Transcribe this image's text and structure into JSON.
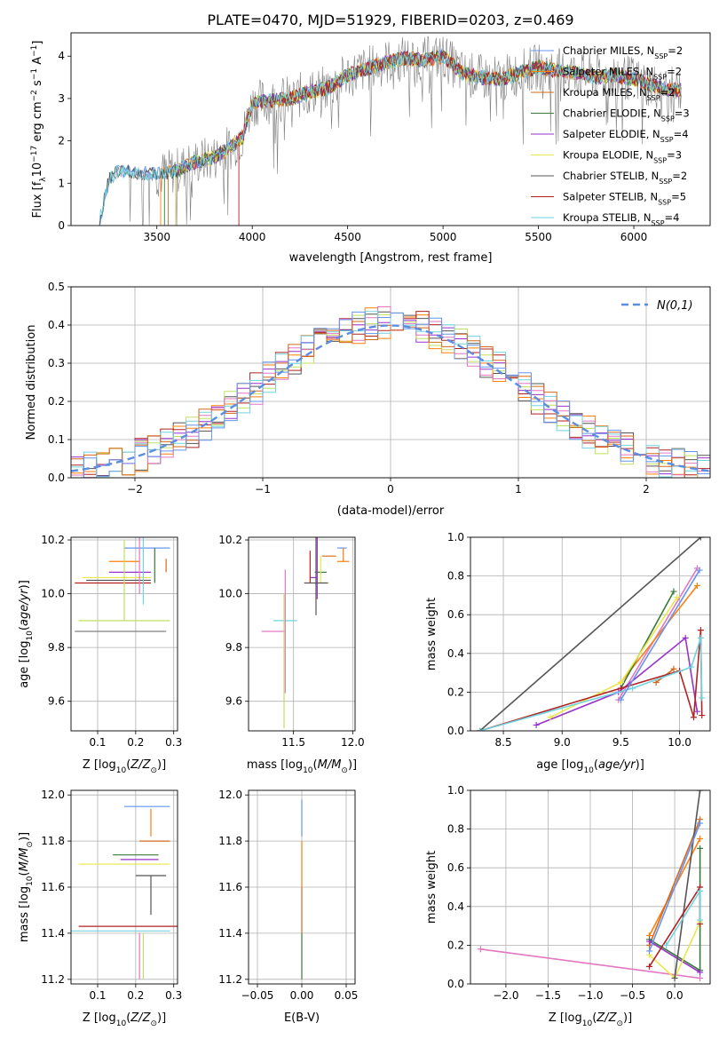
{
  "figure_title": "PLATE=0470, MJD=51929, FIBERID=0203, z=0.469",
  "colors": [
    "#6495ed",
    "#ff7f0e",
    "#d2691e",
    "#3a7a3a",
    "#9932cc",
    "#e8e84a",
    "#555555",
    "#b22222",
    "#6fd3e0",
    "#e377c2",
    "#c0e060",
    "#808080"
  ],
  "chart_data": [
    {
      "id": "spectrum",
      "type": "line",
      "title": "PLATE=0470, MJD=51929, FIBERID=0203, z=0.469",
      "xlabel": "wavelength [Angstrom, rest frame]",
      "ylabel": "Flux [f_λ 10^-17 erg cm^-2 s^-1 A^-1]",
      "xlim": [
        3050,
        6400
      ],
      "ylim": [
        0,
        4.55
      ],
      "xticks": [
        3500,
        4000,
        4500,
        5000,
        5500,
        6000
      ],
      "yticks": [
        0,
        1,
        2,
        3,
        4
      ],
      "legend_position": "upper-right",
      "legend": [
        "Chabrier MILES, N_SSP=2",
        "Salpeter MILES, N_SSP=2",
        "Kroupa MILES, N_SSP=2",
        "Chabrier ELODIE, N_SSP=3",
        "Salpeter ELODIE, N_SSP=4",
        "Kroupa ELODIE, N_SSP=3",
        "Chabrier STELIB, N_SSP=2",
        "Salpeter STELIB, N_SSP=5",
        "Kroupa STELIB, N_SSP=4"
      ],
      "continuum": {
        "x": [
          3200,
          3250,
          3300,
          3400,
          3500,
          3600,
          3700,
          3800,
          3900,
          3950,
          4000,
          4100,
          4200,
          4300,
          4400,
          4500,
          4600,
          4700,
          4800,
          4900,
          5000,
          5100,
          5200,
          5300,
          5400,
          5500,
          5600,
          5700,
          5800,
          5900,
          6000,
          6100,
          6200
        ],
        "y": [
          0.1,
          1.1,
          1.3,
          1.25,
          1.2,
          1.3,
          1.5,
          1.6,
          1.9,
          2.1,
          2.9,
          2.95,
          3.0,
          3.15,
          3.25,
          3.55,
          3.7,
          3.85,
          3.95,
          3.9,
          4.0,
          3.6,
          3.5,
          3.45,
          3.6,
          3.75,
          3.65,
          3.6,
          3.5,
          3.55,
          3.45,
          3.3,
          3.2
        ]
      },
      "series_x_start": [
        3200,
        3520,
        3560,
        3540,
        3600,
        3600,
        3200,
        3930,
        3200
      ],
      "noise_amplitude": 0.8,
      "grid": false
    },
    {
      "id": "residuals",
      "type": "line",
      "xlabel": "(data-model)/error",
      "ylabel": "Normed distribution",
      "xlim": [
        -2.5,
        2.5
      ],
      "ylim": [
        0,
        0.5
      ],
      "xticks": [
        -2,
        -1,
        0,
        1,
        2
      ],
      "xtick_labels": [
        "−2",
        "−1",
        "0",
        "1",
        "2"
      ],
      "yticks": [
        0.0,
        0.1,
        0.2,
        0.3,
        0.4,
        0.5
      ],
      "ytick_labels": [
        "0.0",
        "0.1",
        "0.2",
        "0.3",
        "0.4",
        "0.5"
      ],
      "legend": [
        "N(0,1)"
      ],
      "legend_position": "upper-right",
      "bin_width": 0.1,
      "grid": true
    },
    {
      "id": "z_age",
      "type": "scatter",
      "xlabel": "Z [log10(Z/Z⊙)]",
      "ylabel": "age [log10(age/yr)]",
      "xlim": [
        0.03,
        0.31
      ],
      "ylim": [
        9.49,
        10.21
      ],
      "xticks": [
        0.1,
        0.2,
        0.3
      ],
      "xtick_labels": [
        "0.1",
        "0.2",
        "0.3"
      ],
      "yticks": [
        9.6,
        9.8,
        10.0,
        10.2
      ],
      "ytick_labels": [
        "9.6",
        "9.8",
        "10.0",
        "10.2"
      ],
      "points": [
        [
          0.23,
          10.17,
          0.06,
          0.06,
          0.0,
          0.0
        ],
        [
          0.21,
          10.12,
          0.08,
          0.0,
          0.0,
          0.0
        ],
        [
          0.28,
          10.13,
          0.0,
          0.0,
          0.05,
          0.0
        ],
        [
          0.25,
          10.1,
          0.0,
          0.0,
          0.06,
          0.07
        ],
        [
          0.19,
          10.08,
          0.06,
          0.05,
          0.0,
          0.0
        ],
        [
          0.15,
          10.06,
          0.09,
          0.09,
          0.0,
          0.0
        ],
        [
          0.2,
          10.05,
          0.13,
          0.04,
          0.0,
          0.0
        ],
        [
          0.16,
          10.04,
          0.12,
          0.08,
          0.0,
          0.0
        ],
        [
          0.22,
          10.04,
          0.0,
          0.0,
          0.08,
          0.52
        ],
        [
          0.21,
          10.0,
          0.0,
          0.0,
          0.0,
          0.39
        ],
        [
          0.17,
          9.9,
          0.12,
          0.12,
          0.0,
          0.3
        ],
        [
          0.16,
          9.86,
          0.12,
          0.12,
          0.0,
          0.0
        ]
      ],
      "grid": true
    },
    {
      "id": "mass_age",
      "type": "scatter",
      "xlabel": "mass [log10(M/M⊙)]",
      "ylabel": "",
      "xlim": [
        11.12,
        12.02
      ],
      "ylim": [
        9.49,
        10.21
      ],
      "xticks": [
        11.5,
        12.0
      ],
      "xtick_labels": [
        "11.5",
        "12.0"
      ],
      "yticks": [
        9.6,
        9.8,
        10.0,
        10.2
      ],
      "ytick_labels": [
        "9.6",
        "9.8",
        "10.0",
        "10.2"
      ],
      "points": [
        [
          11.95,
          10.17,
          0.08,
          0.0,
          0.0,
          0.0
        ],
        [
          11.92,
          10.12,
          0.05,
          0.05,
          0.0,
          0.05
        ],
        [
          11.82,
          10.14,
          0.08,
          0.04,
          0.0,
          0.0
        ],
        [
          11.73,
          10.08,
          0.05,
          0.05,
          0.0,
          0.0
        ],
        [
          11.7,
          10.06,
          0.06,
          0.0,
          0.08,
          0.26
        ],
        [
          11.73,
          10.04,
          0.0,
          0.07,
          0.0,
          0.1
        ],
        [
          11.69,
          10.04,
          0.1,
          0.1,
          0.12,
          0.52
        ],
        [
          11.64,
          10.04,
          0.0,
          0.0,
          0.0,
          0.12
        ],
        [
          11.43,
          9.9,
          0.1,
          0.1,
          0.0,
          0.0
        ],
        [
          11.43,
          9.86,
          0.2,
          0.0,
          0.23,
          0.23
        ],
        [
          11.42,
          9.8,
          0.0,
          0.0,
          0.3,
          0.2
        ],
        [
          11.6,
          10.0,
          0.0,
          0.0,
          0.0,
          0.0
        ]
      ],
      "grid": true
    },
    {
      "id": "age_weight",
      "type": "line",
      "xlabel": "age [log10(age/yr)]",
      "ylabel": "mass weight",
      "xlim": [
        8.22,
        10.26
      ],
      "ylim": [
        0.0,
        1.0
      ],
      "xticks": [
        8.5,
        9.0,
        9.5,
        10.0
      ],
      "xtick_labels": [
        "8.5",
        "9.0",
        "9.5",
        "10.0"
      ],
      "yticks": [
        0.0,
        0.2,
        0.4,
        0.6,
        0.8,
        1.0
      ],
      "ytick_labels": [
        "0.0",
        "0.2",
        "0.4",
        "0.6",
        "0.8",
        "1.0"
      ],
      "series": [
        {
          "x": [
            9.48,
            10.15
          ],
          "y": [
            0.16,
            0.84
          ]
        },
        {
          "x": [
            9.5,
            10.15
          ],
          "y": [
            0.25,
            0.75
          ]
        },
        {
          "x": [
            9.8,
            9.95
          ],
          "y": [
            0.25,
            0.32
          ]
        },
        {
          "x": [
            9.5,
            9.95
          ],
          "y": [
            0.22,
            0.72
          ]
        },
        {
          "x": [
            8.78,
            9.48,
            10.05,
            10.15
          ],
          "y": [
            0.03,
            0.2,
            0.48,
            0.1
          ]
        },
        {
          "x": [
            8.9,
            9.5,
            9.98
          ],
          "y": [
            0.07,
            0.25,
            0.69
          ]
        },
        {
          "x": [
            8.3,
            10.18
          ],
          "y": [
            0.0,
            1.0
          ]
        },
        {
          "x": [
            8.3,
            9.5,
            10.0,
            10.12,
            10.18,
            10.19
          ],
          "y": [
            0.0,
            0.22,
            0.31,
            0.07,
            0.52,
            0.08
          ]
        },
        {
          "x": [
            8.3,
            9.6,
            10.1,
            10.18,
            10.19
          ],
          "y": [
            0.0,
            0.22,
            0.33,
            0.48,
            0.17
          ]
        },
        {
          "x": [
            9.5,
            10.17
          ],
          "y": [
            0.16,
            0.83
          ]
        }
      ],
      "grid": true
    },
    {
      "id": "z_mass",
      "type": "scatter",
      "xlabel": "Z [log10(Z/Z⊙)]",
      "ylabel": "mass [log10(M/M⊙)]",
      "xlim": [
        0.03,
        0.31
      ],
      "ylim": [
        11.18,
        12.02
      ],
      "xticks": [
        0.1,
        0.2,
        0.3
      ],
      "xtick_labels": [
        "0.1",
        "0.2",
        "0.3"
      ],
      "yticks": [
        11.2,
        11.4,
        11.6,
        11.8,
        12.0
      ],
      "ytick_labels": [
        "11.2",
        "11.4",
        "11.6",
        "11.8",
        "12.0"
      ],
      "points": [
        [
          0.23,
          11.95,
          0.06,
          0.06,
          0.0,
          0.0
        ],
        [
          0.24,
          11.89,
          0.0,
          0.0,
          0.07,
          0.05
        ],
        [
          0.25,
          11.8,
          0.04,
          0.04,
          0.0,
          0.0
        ],
        [
          0.22,
          11.74,
          0.08,
          0.04,
          0.0,
          0.0
        ],
        [
          0.21,
          11.72,
          0.05,
          0.05,
          0.0,
          0.0
        ],
        [
          0.17,
          11.7,
          0.12,
          0.12,
          0.0,
          0.0
        ],
        [
          0.24,
          11.65,
          0.04,
          0.04,
          0.17,
          0.0
        ],
        [
          0.18,
          11.43,
          0.13,
          0.13,
          0.0,
          0.0
        ],
        [
          0.16,
          11.41,
          0.13,
          0.13,
          0.0,
          0.0
        ],
        [
          0.21,
          11.3,
          0.0,
          0.0,
          0.1,
          0.1
        ],
        [
          0.22,
          11.3,
          0.0,
          0.0,
          0.1,
          0.1
        ]
      ],
      "grid": true
    },
    {
      "id": "ebv_mass",
      "type": "scatter",
      "xlabel": "E(B-V)",
      "ylabel": "",
      "xlim": [
        -0.06,
        0.06
      ],
      "ylim": [
        11.18,
        12.02
      ],
      "xticks": [
        -0.05,
        0.0,
        0.05
      ],
      "xtick_labels": [
        "−0.05",
        "0.00",
        "0.05"
      ],
      "yticks": [
        11.2,
        11.4,
        11.6,
        11.8,
        12.0
      ],
      "ytick_labels": [
        "11.2",
        "11.4",
        "11.6",
        "11.8",
        "12.0"
      ],
      "points": [
        [
          0.0,
          11.9,
          0.0,
          0.0,
          0.08,
          0.08
        ],
        [
          0.0,
          11.7,
          0.0,
          0.0,
          0.1,
          0.1
        ],
        [
          0.0,
          11.5,
          0.0,
          0.0,
          0.1,
          0.1
        ],
        [
          0.0,
          11.3,
          0.0,
          0.0,
          0.1,
          0.1
        ]
      ],
      "grid": true
    },
    {
      "id": "z_weight",
      "type": "line",
      "xlabel": "Z [log10(Z/Z⊙)]",
      "ylabel": "mass weight",
      "xlim": [
        -2.42,
        0.42
      ],
      "ylim": [
        0.0,
        1.0
      ],
      "xticks": [
        -2.0,
        -1.5,
        -1.0,
        -0.5,
        0.0
      ],
      "xtick_labels": [
        "−2.0",
        "−1.5",
        "−1.0",
        "−0.5",
        "0.0"
      ],
      "yticks": [
        0.0,
        0.2,
        0.4,
        0.6,
        0.8,
        1.0
      ],
      "ytick_labels": [
        "0.0",
        "0.2",
        "0.4",
        "0.6",
        "0.8",
        "1.0"
      ],
      "series": [
        {
          "x": [
            -2.3,
            0.3
          ],
          "y": [
            0.18,
            0.03
          ]
        },
        {
          "x": [
            -0.3,
            0.3
          ],
          "y": [
            0.25,
            0.75
          ]
        },
        {
          "x": [
            -0.3,
            0.3
          ],
          "y": [
            0.2,
            0.85
          ]
        },
        {
          "x": [
            -0.3,
            0.3,
            0.3
          ],
          "y": [
            0.23,
            0.07,
            0.7
          ]
        },
        {
          "x": [
            -0.3,
            0.3
          ],
          "y": [
            0.22,
            0.06
          ]
        },
        {
          "x": [
            -0.3,
            0.0,
            0.3
          ],
          "y": [
            0.15,
            0.03,
            0.32
          ]
        },
        {
          "x": [
            0.0,
            0.3
          ],
          "y": [
            0.03,
            1.0
          ]
        },
        {
          "x": [
            -0.3,
            0.3,
            0.3
          ],
          "y": [
            0.09,
            0.5,
            0.31
          ]
        },
        {
          "x": [
            -0.1,
            0.3,
            0.3
          ],
          "y": [
            0.2,
            0.48,
            0.33
          ]
        },
        {
          "x": [
            -0.3,
            0.3
          ],
          "y": [
            0.17,
            0.83
          ]
        }
      ],
      "grid": true
    }
  ]
}
